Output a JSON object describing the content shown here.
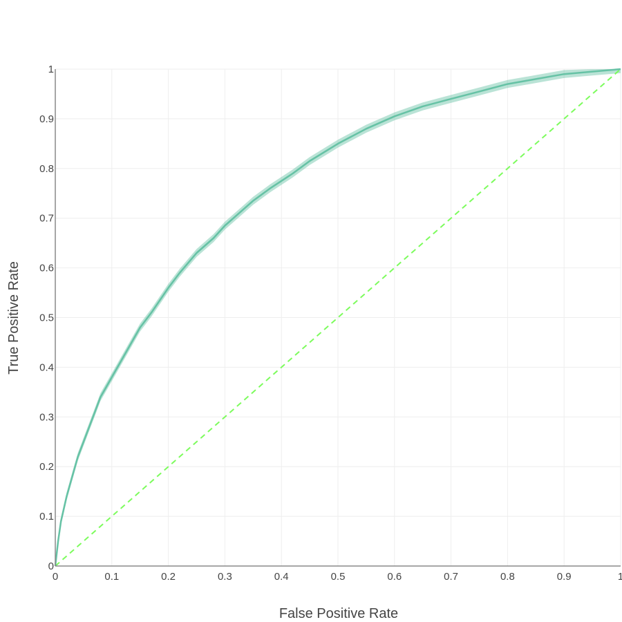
{
  "chart_data": {
    "type": "line",
    "title": "",
    "xlabel": "False Positive Rate",
    "ylabel": "True Positive Rate",
    "xlim": [
      0,
      1
    ],
    "ylim": [
      0,
      1
    ],
    "x_ticks": [
      "0",
      "0.1",
      "0.2",
      "0.3",
      "0.4",
      "0.5",
      "0.6",
      "0.7",
      "0.8",
      "0.9",
      "1"
    ],
    "y_ticks": [
      "0",
      "0.1",
      "0.2",
      "0.3",
      "0.4",
      "0.5",
      "0.6",
      "0.7",
      "0.8",
      "0.9",
      "1"
    ],
    "grid": true,
    "legend": "none",
    "colors": {
      "roc": "#66c2a5",
      "band": "#66c2a5",
      "chance": "#7cfc5c",
      "grid": "#eeeeee",
      "axis": "#888888"
    },
    "series": [
      {
        "role": "roc-curve",
        "band_width": 0.008,
        "x": [
          0,
          0.005,
          0.01,
          0.02,
          0.03,
          0.04,
          0.05,
          0.06,
          0.07,
          0.08,
          0.09,
          0.1,
          0.12,
          0.14,
          0.15,
          0.17,
          0.2,
          0.22,
          0.25,
          0.28,
          0.3,
          0.33,
          0.35,
          0.38,
          0.4,
          0.42,
          0.45,
          0.5,
          0.55,
          0.6,
          0.65,
          0.7,
          0.75,
          0.8,
          0.85,
          0.9,
          0.95,
          1
        ],
        "y": [
          0,
          0.05,
          0.09,
          0.14,
          0.18,
          0.22,
          0.25,
          0.28,
          0.31,
          0.34,
          0.36,
          0.38,
          0.42,
          0.46,
          0.48,
          0.51,
          0.56,
          0.59,
          0.63,
          0.66,
          0.685,
          0.715,
          0.735,
          0.76,
          0.775,
          0.79,
          0.815,
          0.85,
          0.88,
          0.905,
          0.925,
          0.94,
          0.955,
          0.97,
          0.98,
          0.99,
          0.995,
          1
        ]
      },
      {
        "role": "chance-diagonal",
        "x": [
          0,
          1
        ],
        "y": [
          0,
          1
        ]
      }
    ]
  }
}
